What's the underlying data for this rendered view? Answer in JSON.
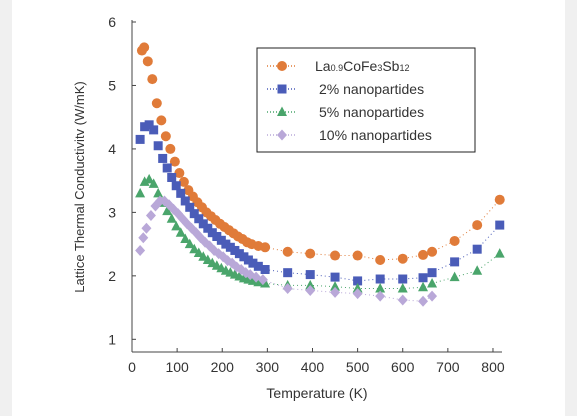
{
  "chart_data": {
    "type": "scatter",
    "title": "",
    "xlabel": "Temperature (K)",
    "ylabel": "Lattice Thermal Conductivitv (W/mK)",
    "xlim": [
      0,
      820
    ],
    "ylim": [
      0.8,
      6
    ],
    "xticks": [
      0,
      100,
      200,
      300,
      400,
      500,
      600,
      700,
      800
    ],
    "yticks": [
      1,
      2,
      3,
      4,
      5,
      6
    ],
    "grid": false,
    "legend_position": "top-right",
    "series": [
      {
        "name": "La0.9CoFe3Sb12",
        "legend_parts": [
          [
            "La",
            "n"
          ],
          [
            "0.9",
            "s"
          ],
          [
            "CoFe",
            "n"
          ],
          [
            "3",
            "s"
          ],
          [
            "Sb",
            "n"
          ],
          [
            "12",
            "s"
          ]
        ],
        "marker": "circle",
        "color": "#e07b39",
        "points": [
          [
            22,
            5.55
          ],
          [
            27,
            5.6
          ],
          [
            35,
            5.38
          ],
          [
            45,
            5.1
          ],
          [
            55,
            4.72
          ],
          [
            65,
            4.45
          ],
          [
            75,
            4.2
          ],
          [
            85,
            4.0
          ],
          [
            95,
            3.8
          ],
          [
            105,
            3.62
          ],
          [
            115,
            3.48
          ],
          [
            125,
            3.35
          ],
          [
            135,
            3.25
          ],
          [
            145,
            3.16
          ],
          [
            155,
            3.08
          ],
          [
            165,
            3.0
          ],
          [
            175,
            2.94
          ],
          [
            185,
            2.88
          ],
          [
            195,
            2.82
          ],
          [
            205,
            2.77
          ],
          [
            215,
            2.72
          ],
          [
            225,
            2.67
          ],
          [
            235,
            2.62
          ],
          [
            245,
            2.58
          ],
          [
            255,
            2.53
          ],
          [
            265,
            2.5
          ],
          [
            280,
            2.47
          ],
          [
            295,
            2.45
          ],
          [
            345,
            2.38
          ],
          [
            395,
            2.35
          ],
          [
            450,
            2.32
          ],
          [
            500,
            2.32
          ],
          [
            550,
            2.25
          ],
          [
            600,
            2.27
          ],
          [
            645,
            2.33
          ],
          [
            665,
            2.38
          ],
          [
            715,
            2.55
          ],
          [
            765,
            2.8
          ],
          [
            815,
            3.2
          ]
        ]
      },
      {
        "name": "2% nanopartides",
        "marker": "square",
        "color": "#4a5cb8",
        "points": [
          [
            18,
            4.15
          ],
          [
            28,
            4.35
          ],
          [
            38,
            4.38
          ],
          [
            48,
            4.3
          ],
          [
            58,
            4.05
          ],
          [
            68,
            3.85
          ],
          [
            78,
            3.7
          ],
          [
            88,
            3.55
          ],
          [
            98,
            3.42
          ],
          [
            108,
            3.3
          ],
          [
            118,
            3.18
          ],
          [
            128,
            3.08
          ],
          [
            138,
            2.98
          ],
          [
            148,
            2.9
          ],
          [
            158,
            2.82
          ],
          [
            168,
            2.75
          ],
          [
            178,
            2.68
          ],
          [
            188,
            2.62
          ],
          [
            198,
            2.56
          ],
          [
            208,
            2.5
          ],
          [
            218,
            2.45
          ],
          [
            228,
            2.4
          ],
          [
            238,
            2.35
          ],
          [
            248,
            2.3
          ],
          [
            258,
            2.25
          ],
          [
            268,
            2.2
          ],
          [
            280,
            2.15
          ],
          [
            295,
            2.1
          ],
          [
            345,
            2.05
          ],
          [
            395,
            2.02
          ],
          [
            450,
            1.98
          ],
          [
            500,
            1.92
          ],
          [
            550,
            1.95
          ],
          [
            600,
            1.95
          ],
          [
            645,
            1.97
          ],
          [
            665,
            2.05
          ],
          [
            715,
            2.22
          ],
          [
            765,
            2.42
          ],
          [
            815,
            2.8
          ]
        ]
      },
      {
        "name": "5% nanopartides",
        "marker": "triangle",
        "color": "#4aa56b",
        "points": [
          [
            18,
            3.3
          ],
          [
            28,
            3.48
          ],
          [
            38,
            3.52
          ],
          [
            48,
            3.45
          ],
          [
            58,
            3.3
          ],
          [
            68,
            3.15
          ],
          [
            78,
            3.02
          ],
          [
            88,
            2.9
          ],
          [
            98,
            2.78
          ],
          [
            108,
            2.68
          ],
          [
            118,
            2.58
          ],
          [
            128,
            2.5
          ],
          [
            138,
            2.42
          ],
          [
            148,
            2.36
          ],
          [
            158,
            2.3
          ],
          [
            168,
            2.25
          ],
          [
            178,
            2.2
          ],
          [
            188,
            2.16
          ],
          [
            198,
            2.12
          ],
          [
            208,
            2.08
          ],
          [
            218,
            2.05
          ],
          [
            228,
            2.02
          ],
          [
            238,
            1.99
          ],
          [
            248,
            1.96
          ],
          [
            258,
            1.94
          ],
          [
            268,
            1.92
          ],
          [
            280,
            1.9
          ],
          [
            295,
            1.88
          ],
          [
            345,
            1.85
          ],
          [
            395,
            1.85
          ],
          [
            450,
            1.83
          ],
          [
            500,
            1.8
          ],
          [
            550,
            1.8
          ],
          [
            600,
            1.8
          ],
          [
            645,
            1.82
          ],
          [
            665,
            1.88
          ],
          [
            715,
            1.98
          ],
          [
            765,
            2.08
          ],
          [
            815,
            2.35
          ]
        ]
      },
      {
        "name": "10% nanopartides",
        "marker": "diamond",
        "color": "#b9a8d8",
        "points": [
          [
            18,
            2.4
          ],
          [
            25,
            2.6
          ],
          [
            32,
            2.75
          ],
          [
            42,
            2.95
          ],
          [
            52,
            3.1
          ],
          [
            62,
            3.18
          ],
          [
            72,
            3.18
          ],
          [
            82,
            3.12
          ],
          [
            92,
            3.05
          ],
          [
            102,
            2.98
          ],
          [
            112,
            2.9
          ],
          [
            122,
            2.82
          ],
          [
            132,
            2.75
          ],
          [
            142,
            2.68
          ],
          [
            152,
            2.6
          ],
          [
            162,
            2.53
          ],
          [
            172,
            2.47
          ],
          [
            182,
            2.4
          ],
          [
            192,
            2.35
          ],
          [
            202,
            2.3
          ],
          [
            212,
            2.24
          ],
          [
            222,
            2.2
          ],
          [
            232,
            2.14
          ],
          [
            242,
            2.1
          ],
          [
            252,
            2.05
          ],
          [
            262,
            2.02
          ],
          [
            275,
            1.98
          ],
          [
            290,
            1.94
          ],
          [
            345,
            1.8
          ],
          [
            395,
            1.77
          ],
          [
            450,
            1.74
          ],
          [
            500,
            1.72
          ],
          [
            550,
            1.68
          ],
          [
            600,
            1.62
          ],
          [
            645,
            1.6
          ],
          [
            665,
            1.68
          ]
        ]
      }
    ]
  }
}
